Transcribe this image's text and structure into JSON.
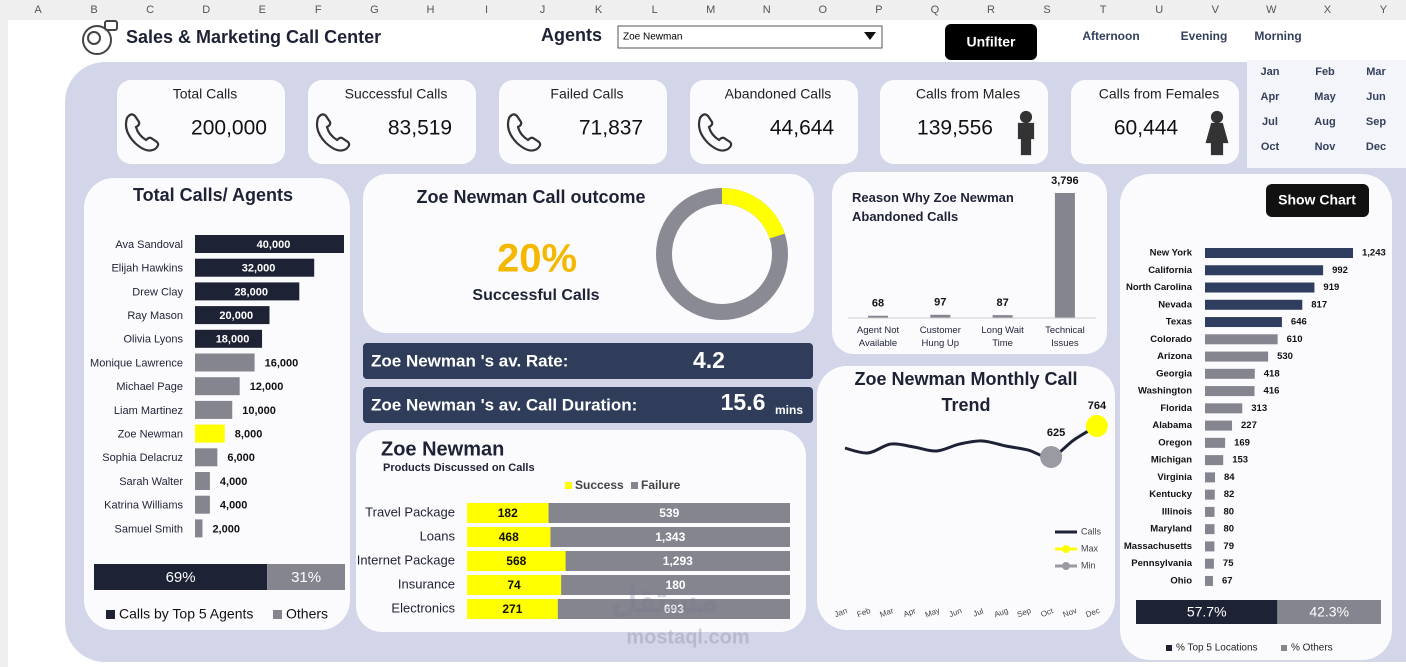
{
  "columns": [
    "A",
    "B",
    "C",
    "D",
    "E",
    "F",
    "G",
    "H",
    "I",
    "J",
    "K",
    "L",
    "M",
    "N",
    "O",
    "P",
    "Q",
    "R",
    "S",
    "T",
    "U",
    "V",
    "W",
    "X",
    "Y"
  ],
  "header": {
    "title": "Sales & Marketing Call Center",
    "agents_label": "Agents",
    "agent_selected": "Zoe Newman",
    "unfilter": "Unfilter",
    "shifts": [
      "Afternoon",
      "Evening",
      "Morning"
    ],
    "months": [
      "Jan",
      "Feb",
      "Mar",
      "Apr",
      "May",
      "Jun",
      "Jul",
      "Aug",
      "Sep",
      "Oct",
      "Nov",
      "Dec"
    ]
  },
  "kpis": [
    {
      "label": "Total Calls",
      "value": "200,000"
    },
    {
      "label": "Successful Calls",
      "value": "83,519"
    },
    {
      "label": "Failed Calls",
      "value": "71,837"
    },
    {
      "label": "Abandoned Calls",
      "value": "44,644"
    },
    {
      "label": "Calls from Males",
      "value": "139,556"
    },
    {
      "label": "Calls from Females",
      "value": "60,444"
    }
  ],
  "agents": {
    "type": "bar",
    "title": "Total Calls/ Agents",
    "categories": [
      "Ava Sandoval",
      "Elijah Hawkins",
      "Drew Clay",
      "Ray Mason",
      "Olivia Lyons",
      "Monique Lawrence",
      "Michael Page",
      "Liam Martinez",
      "Zoe Newman",
      "Sophia Delacruz",
      "Sarah Walter",
      "Katrina Williams",
      "Samuel Smith"
    ],
    "values": [
      40000,
      32000,
      28000,
      20000,
      18000,
      16000,
      12000,
      10000,
      8000,
      6000,
      4000,
      4000,
      2000
    ],
    "value_labels": [
      "40,000",
      "32,000",
      "28,000",
      "20,000",
      "18,000",
      "16,000",
      "12,000",
      "10,000",
      "8,000",
      "6,000",
      "4,000",
      "4,000",
      "2,000"
    ],
    "colors": [
      "#1e2235",
      "#1e2235",
      "#1e2235",
      "#1e2235",
      "#1e2235",
      "#858590",
      "#858590",
      "#858590",
      "#ffff00",
      "#858590",
      "#858590",
      "#858590",
      "#858590"
    ],
    "split": {
      "values": [
        69,
        31
      ],
      "value_labels": [
        "69%",
        "31%"
      ],
      "labels": [
        "Calls by Top 5 Agents",
        "Others"
      ],
      "colors": [
        "#1e2235",
        "#858590"
      ]
    }
  },
  "outcome": {
    "type": "pie",
    "title": "Zoe Newman Call outcome",
    "value": 20,
    "value_label": "20%",
    "subtitle": "Successful Calls",
    "color": "#ffff00",
    "track_color": "#8a8a94"
  },
  "rate": {
    "label": "Zoe Newman 's av. Rate:",
    "value": 4.2
  },
  "duration": {
    "label": "Zoe Newman 's av. Call Duration:",
    "value": 15.6,
    "unit": "mins"
  },
  "products": {
    "type": "bar",
    "stacking": "percent",
    "title": "Zoe Newman",
    "subtitle": "Products Discussed on Calls",
    "categories": [
      "Travel Package",
      "Loans",
      "Internet Package",
      "Insurance",
      "Electronics"
    ],
    "series": [
      {
        "name": "Success",
        "color": "#ffff00",
        "values": [
          182,
          468,
          568,
          74,
          271
        ]
      },
      {
        "name": "Failure",
        "color": "#858590",
        "values": [
          539,
          1343,
          1293,
          180,
          693
        ],
        "value_labels": [
          "539",
          "1,343",
          "1,293",
          "180",
          "693"
        ]
      }
    ]
  },
  "abandoned": {
    "type": "bar",
    "title": "Reason Why Zoe Newman Abandoned Calls",
    "categories": [
      "Agent Not Available",
      "Customer Hung Up",
      "Long Wait Time",
      "Technical Issues"
    ],
    "values": [
      68,
      97,
      87,
      3796
    ],
    "value_labels": [
      "68",
      "97",
      "87",
      "3,796"
    ],
    "color": "#858590"
  },
  "monthly": {
    "type": "line",
    "title": "Zoe Newman Monthly Call Trend",
    "categories": [
      "Jan",
      "Feb",
      "Mar",
      "Apr",
      "May",
      "Jun",
      "Jul",
      "Aug",
      "Sep",
      "Oct",
      "Nov",
      "Dec"
    ],
    "values": [
      665,
      643,
      683,
      670,
      652,
      683,
      697,
      675,
      656,
      625,
      702,
      764
    ],
    "legend": [
      "Calls",
      "Max",
      "Min"
    ],
    "colors": [
      "#1e2235",
      "#ffff00",
      "#9a9aa2"
    ]
  },
  "locations": {
    "type": "bar",
    "button": "Show Chart",
    "categories": [
      "New York",
      "California",
      "North Carolina",
      "Nevada",
      "Texas",
      "Colorado",
      "Arizona",
      "Georgia",
      "Washington",
      "Florida",
      "Alabama",
      "Oregon",
      "Michigan",
      "Virginia",
      "Kentucky",
      "Illinois",
      "Maryland",
      "Massachusetts",
      "Pennsylvania",
      "Ohio"
    ],
    "values": [
      1243,
      992,
      919,
      817,
      646,
      610,
      530,
      418,
      416,
      313,
      227,
      169,
      153,
      84,
      82,
      80,
      80,
      79,
      75,
      67
    ],
    "value_labels": [
      "1,243",
      "992",
      "919",
      "817",
      "646",
      "610",
      "530",
      "418",
      "416",
      "313",
      "227",
      "169",
      "153",
      "84",
      "82",
      "80",
      "80",
      "79",
      "75",
      "67"
    ],
    "colors": [
      "#2f3e5e",
      "#2f3e5e",
      "#2f3e5e",
      "#2f3e5e",
      "#2f3e5e",
      "#858590",
      "#858590",
      "#858590",
      "#858590",
      "#858590",
      "#858590",
      "#858590",
      "#858590",
      "#858590",
      "#858590",
      "#858590",
      "#858590",
      "#858590",
      "#858590",
      "#858590"
    ],
    "split": {
      "values": [
        57.7,
        42.3
      ],
      "value_labels": [
        "57.7%",
        "42.3%"
      ],
      "labels": [
        "% Top 5 Locations",
        "% Others"
      ],
      "colors": [
        "#1e2235",
        "#858590"
      ]
    }
  },
  "watermark": {
    "arabic": "مستقل",
    "latin": "mostaql.com"
  }
}
